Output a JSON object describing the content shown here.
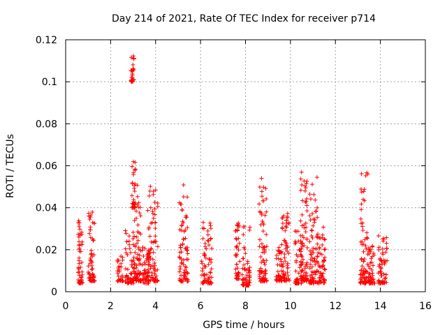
{
  "chart_data": {
    "type": "scatter",
    "title": "Day 214 of 2021, Rate Of TEC Index for receiver p714",
    "xlabel": "GPS time / hours",
    "ylabel": "ROTI / TECUs",
    "xlim": [
      0,
      16
    ],
    "ylim": [
      0,
      0.12
    ],
    "xticks": [
      0,
      2,
      4,
      6,
      8,
      10,
      12,
      14,
      16
    ],
    "xtick_labels": [
      "0",
      "2",
      "4",
      "6",
      "8",
      "10",
      "12",
      "14",
      "16"
    ],
    "yticks": [
      0,
      0.02,
      0.04,
      0.06,
      0.08,
      0.1,
      0.12
    ],
    "ytick_labels": [
      "0",
      "0.02",
      "0.04",
      "0.06",
      "0.08",
      "0.1",
      "0.12"
    ],
    "grid": true,
    "marker": "+",
    "series_color": "#ff0000",
    "clusters": [
      {
        "x": [
          0.55,
          0.75
        ],
        "y": [
          0.004,
          0.038
        ]
      },
      {
        "x": [
          1.0,
          1.3
        ],
        "y": [
          0.005,
          0.038
        ]
      },
      {
        "x": [
          2.3,
          2.55
        ],
        "y": [
          0.005,
          0.017
        ]
      },
      {
        "x": [
          2.65,
          3.05
        ],
        "y": [
          0.004,
          0.03
        ]
      },
      {
        "x": [
          2.9,
          3.05
        ],
        "y": [
          0.1,
          0.114
        ]
      },
      {
        "x": [
          2.95,
          3.1
        ],
        "y": [
          0.04,
          0.062
        ]
      },
      {
        "x": [
          3.05,
          3.35
        ],
        "y": [
          0.005,
          0.052
        ]
      },
      {
        "x": [
          3.4,
          3.7
        ],
        "y": [
          0.004,
          0.022
        ]
      },
      {
        "x": [
          3.65,
          4.1
        ],
        "y": [
          0.005,
          0.052
        ]
      },
      {
        "x": [
          5.05,
          5.45
        ],
        "y": [
          0.005,
          0.052
        ]
      },
      {
        "x": [
          6.05,
          6.5
        ],
        "y": [
          0.004,
          0.034
        ]
      },
      {
        "x": [
          7.55,
          7.75
        ],
        "y": [
          0.006,
          0.033
        ]
      },
      {
        "x": [
          7.85,
          8.2
        ],
        "y": [
          0.003,
          0.032
        ]
      },
      {
        "x": [
          8.6,
          8.95
        ],
        "y": [
          0.005,
          0.055
        ]
      },
      {
        "x": [
          9.35,
          9.6
        ],
        "y": [
          0.005,
          0.022
        ]
      },
      {
        "x": [
          9.6,
          9.95
        ],
        "y": [
          0.005,
          0.038
        ]
      },
      {
        "x": [
          10.2,
          10.5
        ],
        "y": [
          0.004,
          0.033
        ]
      },
      {
        "x": [
          10.45,
          10.75
        ],
        "y": [
          0.005,
          0.058
        ]
      },
      {
        "x": [
          10.85,
          11.2
        ],
        "y": [
          0.004,
          0.056
        ]
      },
      {
        "x": [
          11.2,
          11.55
        ],
        "y": [
          0.004,
          0.032
        ]
      },
      {
        "x": [
          13.1,
          13.45
        ],
        "y": [
          0.004,
          0.058
        ]
      },
      {
        "x": [
          13.45,
          13.75
        ],
        "y": [
          0.004,
          0.024
        ]
      },
      {
        "x": [
          13.9,
          14.3
        ],
        "y": [
          0.004,
          0.028
        ]
      }
    ]
  }
}
